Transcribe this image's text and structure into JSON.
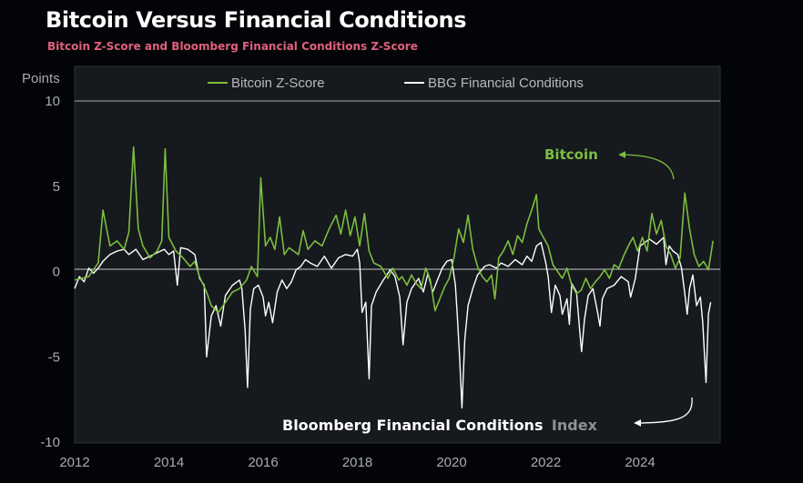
{
  "title": "Bitcoin Versus Financial Conditions",
  "subtitle": "Bitcoin Z-Score and Bloomberg Financial Conditions Z-Score",
  "colors": {
    "bitcoin": "#7bbd3f",
    "bbg": "#ffffff",
    "background": "#030407",
    "plot_bg": "#16191d",
    "subtitle": "#e0607e"
  },
  "chart_data": {
    "type": "line",
    "ylabel": "Points",
    "xlim": [
      2012,
      2025.7
    ],
    "ylim": [
      -10,
      10
    ],
    "y_ticks": [
      10,
      5,
      0,
      -5,
      -10
    ],
    "y_tick_labels": [
      "10",
      "5",
      "0",
      "-5",
      "-10"
    ],
    "x_ticks": [
      2012,
      2014,
      2016,
      2018,
      2020,
      2022,
      2024
    ],
    "x_tick_labels": [
      "2012",
      "2014",
      "2016",
      "2018",
      "2020",
      "2022",
      "2024"
    ],
    "legend_position": "top",
    "grid": false,
    "series": [
      {
        "name": "Bitcoin Z-Score",
        "color": "#7bbd3f",
        "points": [
          [
            2012.0,
            -0.5
          ],
          [
            2012.3,
            -0.3
          ],
          [
            2012.5,
            0.5
          ],
          [
            2012.6,
            3.6
          ],
          [
            2012.75,
            1.5
          ],
          [
            2012.9,
            1.8
          ],
          [
            2013.05,
            1.3
          ],
          [
            2013.15,
            2.3
          ],
          [
            2013.25,
            7.3
          ],
          [
            2013.35,
            2.5
          ],
          [
            2013.45,
            1.5
          ],
          [
            2013.6,
            0.8
          ],
          [
            2013.75,
            1.2
          ],
          [
            2013.85,
            1.8
          ],
          [
            2013.92,
            7.2
          ],
          [
            2014.0,
            2.0
          ],
          [
            2014.15,
            1.2
          ],
          [
            2014.3,
            0.8
          ],
          [
            2014.45,
            0.3
          ],
          [
            2014.55,
            0.6
          ],
          [
            2014.65,
            -0.3
          ],
          [
            2014.8,
            -1.2
          ],
          [
            2014.9,
            -2.0
          ],
          [
            2015.05,
            -2.4
          ],
          [
            2015.2,
            -1.8
          ],
          [
            2015.35,
            -1.2
          ],
          [
            2015.5,
            -1.0
          ],
          [
            2015.65,
            -0.5
          ],
          [
            2015.75,
            0.3
          ],
          [
            2015.88,
            -0.3
          ],
          [
            2015.95,
            5.5
          ],
          [
            2016.05,
            1.5
          ],
          [
            2016.15,
            2.0
          ],
          [
            2016.25,
            1.3
          ],
          [
            2016.35,
            3.2
          ],
          [
            2016.45,
            1.0
          ],
          [
            2016.55,
            1.4
          ],
          [
            2016.65,
            1.2
          ],
          [
            2016.75,
            1.0
          ],
          [
            2016.85,
            2.4
          ],
          [
            2016.95,
            1.3
          ],
          [
            2017.1,
            1.8
          ],
          [
            2017.25,
            1.5
          ],
          [
            2017.4,
            2.5
          ],
          [
            2017.55,
            3.3
          ],
          [
            2017.65,
            2.2
          ],
          [
            2017.75,
            3.6
          ],
          [
            2017.85,
            2.1
          ],
          [
            2017.95,
            3.2
          ],
          [
            2018.05,
            1.5
          ],
          [
            2018.15,
            3.4
          ],
          [
            2018.25,
            1.2
          ],
          [
            2018.35,
            0.5
          ],
          [
            2018.5,
            0.3
          ],
          [
            2018.65,
            -0.4
          ],
          [
            2018.75,
            0.2
          ],
          [
            2018.88,
            -0.5
          ],
          [
            2018.95,
            -0.3
          ],
          [
            2019.05,
            -0.8
          ],
          [
            2019.15,
            -0.2
          ],
          [
            2019.25,
            -0.7
          ],
          [
            2019.35,
            -1.0
          ],
          [
            2019.45,
            0.2
          ],
          [
            2019.55,
            -0.5
          ],
          [
            2019.65,
            -2.3
          ],
          [
            2019.75,
            -1.6
          ],
          [
            2019.85,
            -0.9
          ],
          [
            2019.95,
            -0.4
          ],
          [
            2020.05,
            0.8
          ],
          [
            2020.15,
            2.5
          ],
          [
            2020.25,
            1.7
          ],
          [
            2020.35,
            3.3
          ],
          [
            2020.45,
            1.3
          ],
          [
            2020.55,
            0.3
          ],
          [
            2020.65,
            -0.3
          ],
          [
            2020.75,
            -0.6
          ],
          [
            2020.85,
            -0.2
          ],
          [
            2020.92,
            -1.6
          ],
          [
            2021.0,
            0.8
          ],
          [
            2021.1,
            1.2
          ],
          [
            2021.2,
            1.8
          ],
          [
            2021.3,
            1.0
          ],
          [
            2021.4,
            2.1
          ],
          [
            2021.5,
            1.7
          ],
          [
            2021.6,
            2.8
          ],
          [
            2021.7,
            3.6
          ],
          [
            2021.8,
            4.5
          ],
          [
            2021.85,
            2.5
          ],
          [
            2021.95,
            2.0
          ],
          [
            2022.05,
            1.5
          ],
          [
            2022.15,
            0.4
          ],
          [
            2022.25,
            0.0
          ],
          [
            2022.35,
            -0.4
          ],
          [
            2022.45,
            0.2
          ],
          [
            2022.55,
            -0.8
          ],
          [
            2022.65,
            -1.3
          ],
          [
            2022.75,
            -1.1
          ],
          [
            2022.85,
            -0.4
          ],
          [
            2022.95,
            -1.0
          ],
          [
            2023.05,
            -0.6
          ],
          [
            2023.15,
            -0.3
          ],
          [
            2023.25,
            0.1
          ],
          [
            2023.35,
            -0.4
          ],
          [
            2023.45,
            0.4
          ],
          [
            2023.55,
            0.2
          ],
          [
            2023.65,
            0.9
          ],
          [
            2023.75,
            1.5
          ],
          [
            2023.85,
            2.0
          ],
          [
            2023.95,
            1.2
          ],
          [
            2024.05,
            2.0
          ],
          [
            2024.15,
            1.2
          ],
          [
            2024.25,
            3.4
          ],
          [
            2024.35,
            2.2
          ],
          [
            2024.45,
            3.0
          ],
          [
            2024.55,
            1.5
          ],
          [
            2024.65,
            1.0
          ],
          [
            2024.75,
            0.2
          ],
          [
            2024.85,
            0.8
          ],
          [
            2024.95,
            4.6
          ],
          [
            2025.05,
            2.5
          ],
          [
            2025.15,
            1.0
          ],
          [
            2025.25,
            0.3
          ],
          [
            2025.35,
            0.6
          ],
          [
            2025.45,
            0.1
          ],
          [
            2025.55,
            1.8
          ]
        ]
      },
      {
        "name": "BBG Financial Conditions",
        "color": "#ffffff",
        "points": [
          [
            2012.0,
            -1.0
          ],
          [
            2012.1,
            -0.3
          ],
          [
            2012.2,
            -0.6
          ],
          [
            2012.3,
            0.2
          ],
          [
            2012.4,
            -0.1
          ],
          [
            2012.5,
            0.2
          ],
          [
            2012.6,
            0.6
          ],
          [
            2012.75,
            1.0
          ],
          [
            2012.9,
            1.2
          ],
          [
            2013.05,
            1.3
          ],
          [
            2013.15,
            1.0
          ],
          [
            2013.3,
            1.3
          ],
          [
            2013.45,
            0.7
          ],
          [
            2013.6,
            0.9
          ],
          [
            2013.75,
            1.1
          ],
          [
            2013.9,
            1.3
          ],
          [
            2014.0,
            1.0
          ],
          [
            2014.1,
            1.2
          ],
          [
            2014.18,
            -0.8
          ],
          [
            2014.25,
            1.4
          ],
          [
            2014.4,
            1.3
          ],
          [
            2014.55,
            1.0
          ],
          [
            2014.65,
            -0.4
          ],
          [
            2014.75,
            -0.8
          ],
          [
            2014.8,
            -5.0
          ],
          [
            2014.9,
            -2.6
          ],
          [
            2015.0,
            -2.0
          ],
          [
            2015.1,
            -3.2
          ],
          [
            2015.2,
            -1.4
          ],
          [
            2015.35,
            -0.8
          ],
          [
            2015.5,
            -0.5
          ],
          [
            2015.55,
            -1.0
          ],
          [
            2015.62,
            -3.5
          ],
          [
            2015.67,
            -6.8
          ],
          [
            2015.73,
            -2.2
          ],
          [
            2015.8,
            -1.0
          ],
          [
            2015.9,
            -0.8
          ],
          [
            2016.0,
            -1.5
          ],
          [
            2016.05,
            -2.6
          ],
          [
            2016.12,
            -1.8
          ],
          [
            2016.2,
            -3.0
          ],
          [
            2016.3,
            -1.2
          ],
          [
            2016.4,
            -0.5
          ],
          [
            2016.5,
            -1.0
          ],
          [
            2016.6,
            -0.6
          ],
          [
            2016.7,
            0.1
          ],
          [
            2016.8,
            0.3
          ],
          [
            2016.9,
            0.7
          ],
          [
            2017.0,
            0.5
          ],
          [
            2017.15,
            0.3
          ],
          [
            2017.3,
            0.9
          ],
          [
            2017.45,
            0.2
          ],
          [
            2017.6,
            0.8
          ],
          [
            2017.75,
            1.0
          ],
          [
            2017.9,
            0.9
          ],
          [
            2018.0,
            1.3
          ],
          [
            2018.05,
            0.5
          ],
          [
            2018.1,
            -2.4
          ],
          [
            2018.18,
            -1.8
          ],
          [
            2018.25,
            -6.3
          ],
          [
            2018.3,
            -2.0
          ],
          [
            2018.4,
            -1.2
          ],
          [
            2018.55,
            -0.5
          ],
          [
            2018.7,
            0.1
          ],
          [
            2018.8,
            -0.3
          ],
          [
            2018.9,
            -1.5
          ],
          [
            2018.97,
            -4.3
          ],
          [
            2019.05,
            -1.8
          ],
          [
            2019.15,
            -1.0
          ],
          [
            2019.3,
            -0.4
          ],
          [
            2019.4,
            -1.2
          ],
          [
            2019.5,
            -0.1
          ],
          [
            2019.6,
            -1.2
          ],
          [
            2019.7,
            -0.5
          ],
          [
            2019.8,
            0.2
          ],
          [
            2019.9,
            0.6
          ],
          [
            2020.0,
            0.7
          ],
          [
            2020.08,
            -0.8
          ],
          [
            2020.12,
            -2.5
          ],
          [
            2020.17,
            -5.0
          ],
          [
            2020.22,
            -8.0
          ],
          [
            2020.28,
            -4.0
          ],
          [
            2020.35,
            -2.0
          ],
          [
            2020.45,
            -1.0
          ],
          [
            2020.55,
            -0.2
          ],
          [
            2020.7,
            0.3
          ],
          [
            2020.8,
            0.4
          ],
          [
            2020.95,
            0.2
          ],
          [
            2021.05,
            0.5
          ],
          [
            2021.2,
            0.3
          ],
          [
            2021.35,
            0.7
          ],
          [
            2021.5,
            0.4
          ],
          [
            2021.6,
            0.9
          ],
          [
            2021.7,
            0.6
          ],
          [
            2021.8,
            1.5
          ],
          [
            2021.9,
            1.7
          ],
          [
            2022.0,
            0.5
          ],
          [
            2022.05,
            -0.3
          ],
          [
            2022.12,
            -2.4
          ],
          [
            2022.2,
            -0.8
          ],
          [
            2022.3,
            -1.4
          ],
          [
            2022.35,
            -2.5
          ],
          [
            2022.45,
            -1.6
          ],
          [
            2022.5,
            -3.1
          ],
          [
            2022.55,
            -0.7
          ],
          [
            2022.65,
            -1.2
          ],
          [
            2022.72,
            -3.5
          ],
          [
            2022.76,
            -4.7
          ],
          [
            2022.82,
            -2.8
          ],
          [
            2022.9,
            -1.4
          ],
          [
            2023.0,
            -1.0
          ],
          [
            2023.1,
            -2.4
          ],
          [
            2023.15,
            -3.2
          ],
          [
            2023.2,
            -1.6
          ],
          [
            2023.3,
            -1.0
          ],
          [
            2023.45,
            -0.8
          ],
          [
            2023.6,
            -0.3
          ],
          [
            2023.75,
            -0.6
          ],
          [
            2023.8,
            -1.5
          ],
          [
            2023.9,
            -0.4
          ],
          [
            2024.0,
            1.5
          ],
          [
            2024.1,
            1.7
          ],
          [
            2024.2,
            1.9
          ],
          [
            2024.35,
            1.6
          ],
          [
            2024.5,
            2.0
          ],
          [
            2024.55,
            0.4
          ],
          [
            2024.62,
            1.5
          ],
          [
            2024.7,
            1.2
          ],
          [
            2024.8,
            1.0
          ],
          [
            2024.88,
            0.2
          ],
          [
            2024.95,
            -1.3
          ],
          [
            2025.0,
            -2.5
          ],
          [
            2025.05,
            -1.0
          ],
          [
            2025.12,
            -0.2
          ],
          [
            2025.2,
            -2.0
          ],
          [
            2025.28,
            -1.5
          ],
          [
            2025.33,
            -3.0
          ],
          [
            2025.37,
            -5.0
          ],
          [
            2025.4,
            -6.5
          ],
          [
            2025.45,
            -2.5
          ],
          [
            2025.5,
            -1.8
          ]
        ]
      }
    ],
    "annotations": [
      {
        "text": "Bitcoin",
        "series": "Bitcoin Z-Score"
      },
      {
        "text_main": "Bloomberg Financial Conditions",
        "text_faded": "Index",
        "series": "BBG Financial Conditions"
      }
    ]
  }
}
